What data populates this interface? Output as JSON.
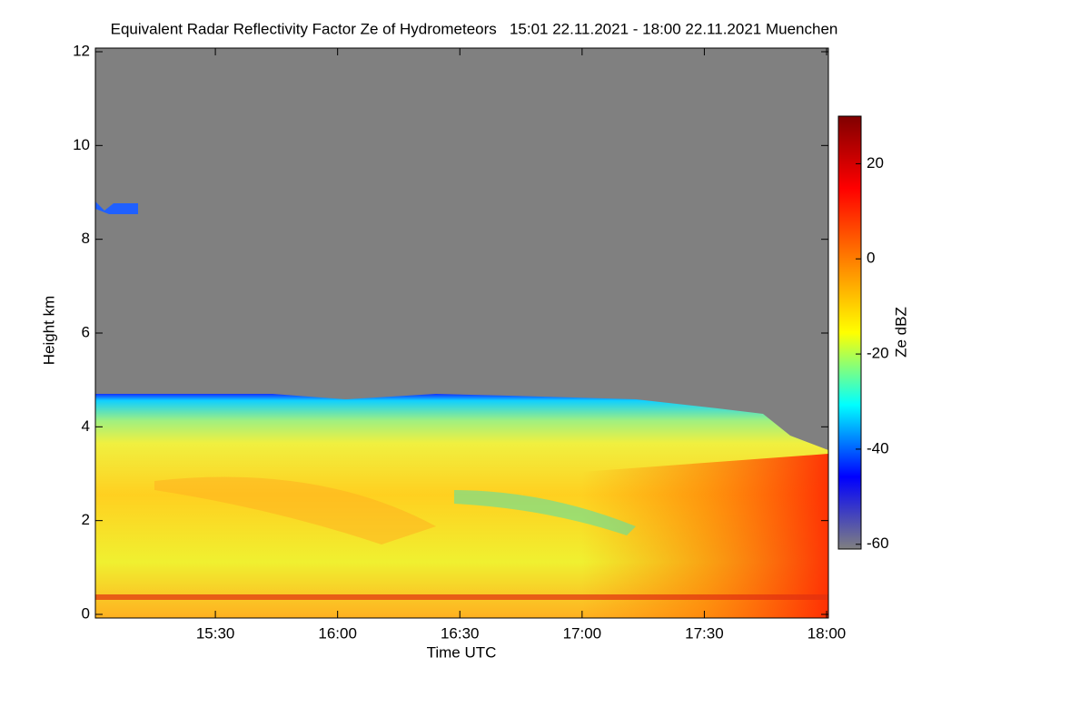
{
  "chart_data": {
    "type": "heatmap",
    "title": "Equivalent Radar Reflectivity Factor Ze of Hydrometeors   15:01 22.11.2021 - 18:00 22.11.2021 Muenchen",
    "x_label": "Time UTC",
    "y_label": "Height km",
    "xlim": [
      901,
      1080
    ],
    "xticks": [
      {
        "value": 930,
        "label": "15:30"
      },
      {
        "value": 960,
        "label": "16:00"
      },
      {
        "value": 990,
        "label": "16:30"
      },
      {
        "value": 1020,
        "label": "17:00"
      },
      {
        "value": 1050,
        "label": "17:30"
      },
      {
        "value": 1080,
        "label": "18:00"
      }
    ],
    "ylim": [
      0,
      12
    ],
    "yticks": [
      0,
      2,
      4,
      6,
      8,
      10,
      12
    ],
    "colorbar_label": "Ze dBZ",
    "clim": [
      -61,
      30
    ],
    "cticks": [
      -60,
      -40,
      -20,
      0,
      20
    ],
    "colormap": [
      "#808080",
      "#0000ff",
      "#00ffff",
      "#ffff00",
      "#ff8000",
      "#ff0000",
      "#800000"
    ]
  }
}
